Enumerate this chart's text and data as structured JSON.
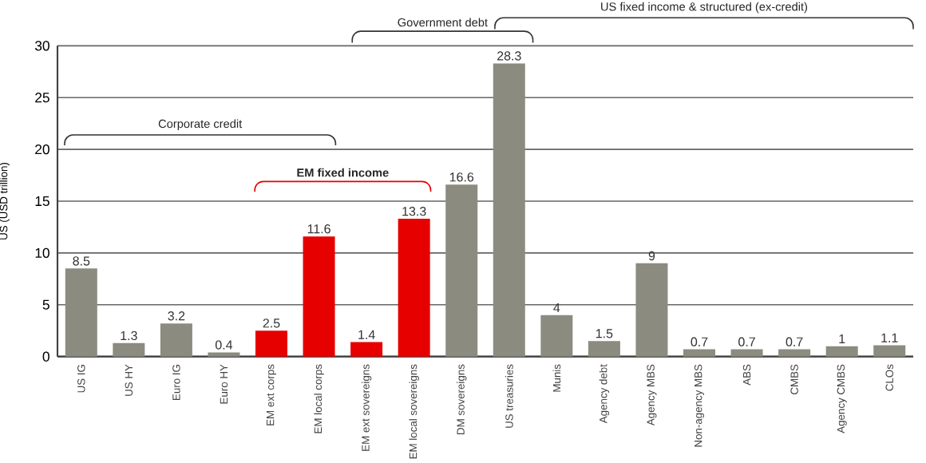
{
  "chart_data": {
    "type": "bar",
    "ylabel": "US (USD trillion)",
    "categories": [
      "US IG",
      "US HY",
      "Euro IG",
      "Euro HY",
      "EM ext corps",
      "EM local corps",
      "EM ext sovereigns",
      "EM local sovereigns",
      "DM sovereigns",
      "US treasuries",
      "Munis",
      "Agency debt",
      "Agency MBS",
      "Non-agency MBS",
      "ABS",
      "CMBS",
      "Agency CMBS",
      "CLOs"
    ],
    "values": [
      8.5,
      1.3,
      3.2,
      0.4,
      2.5,
      11.6,
      1.4,
      13.3,
      16.6,
      28.3,
      4,
      1.5,
      9,
      0.7,
      0.7,
      0.7,
      1,
      1.1
    ],
    "colors": [
      "#8c8b80",
      "#8c8b80",
      "#8c8b80",
      "#8c8b80",
      "#e60000",
      "#e60000",
      "#e60000",
      "#e60000",
      "#8c8b80",
      "#8c8b80",
      "#8c8b80",
      "#8c8b80",
      "#8c8b80",
      "#8c8b80",
      "#8c8b80",
      "#8c8b80",
      "#8c8b80",
      "#8c8b80"
    ],
    "ylim": [
      0,
      30
    ],
    "yticks": [
      0,
      5,
      10,
      15,
      20,
      25,
      30
    ],
    "grid": "y",
    "data_labels": true,
    "annotations": [
      "Corporate credit",
      "EM fixed income",
      "Government debt",
      "US fixed income & structured (ex-credit)"
    ]
  }
}
